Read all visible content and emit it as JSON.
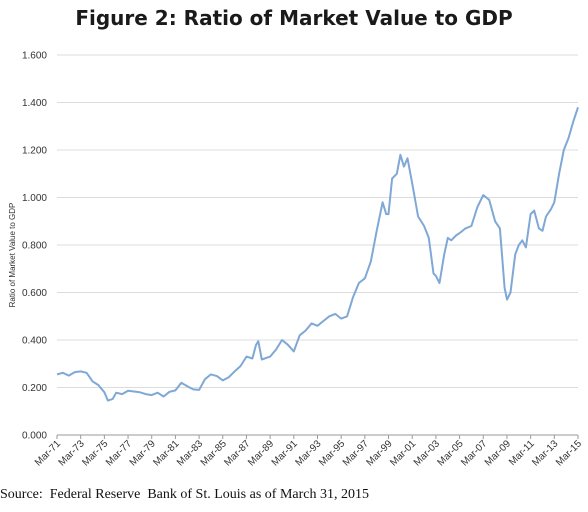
{
  "title": "Figure 2: Ratio of Market Value to GDP",
  "source": "Source:  Federal Reserve  Bank of St. Louis as of March 31, 2015",
  "chart_data": {
    "type": "line",
    "title": "Figure 2: Ratio of Market Value to GDP",
    "xlabel": "",
    "ylabel": "Ratio of Market Value to GDP",
    "ylim": [
      0,
      1.6
    ],
    "yticks": [
      "0.000",
      "0.200",
      "0.400",
      "0.600",
      "0.800",
      "1.000",
      "1.200",
      "1.400",
      "1.600"
    ],
    "xticks": [
      "Mar-71",
      "Mar-73",
      "Mar-75",
      "Mar-77",
      "Mar-79",
      "Mar-81",
      "Mar-83",
      "Mar-85",
      "Mar-87",
      "Mar-89",
      "Mar-91",
      "Mar-93",
      "Mar-95",
      "Mar-97",
      "Mar-99",
      "Mar-01",
      "Mar-03",
      "Mar-05",
      "Mar-07",
      "Mar-09",
      "Mar-11",
      "Mar-13",
      "Mar-15"
    ],
    "grid": true,
    "line_color": "#7fa8d6",
    "series": [
      {
        "points": [
          [
            1971.0,
            0.255
          ],
          [
            1971.5,
            0.262
          ],
          [
            1972.0,
            0.25
          ],
          [
            1972.5,
            0.265
          ],
          [
            1973.0,
            0.268
          ],
          [
            1973.5,
            0.262
          ],
          [
            1974.0,
            0.226
          ],
          [
            1974.5,
            0.21
          ],
          [
            1975.0,
            0.18
          ],
          [
            1975.3,
            0.145
          ],
          [
            1975.7,
            0.152
          ],
          [
            1976.0,
            0.178
          ],
          [
            1976.5,
            0.172
          ],
          [
            1977.0,
            0.186
          ],
          [
            1977.5,
            0.183
          ],
          [
            1978.0,
            0.18
          ],
          [
            1978.5,
            0.172
          ],
          [
            1979.0,
            0.168
          ],
          [
            1979.5,
            0.178
          ],
          [
            1980.0,
            0.162
          ],
          [
            1980.5,
            0.182
          ],
          [
            1981.0,
            0.188
          ],
          [
            1981.5,
            0.22
          ],
          [
            1982.0,
            0.205
          ],
          [
            1982.5,
            0.192
          ],
          [
            1983.0,
            0.19
          ],
          [
            1983.5,
            0.235
          ],
          [
            1984.0,
            0.255
          ],
          [
            1984.5,
            0.248
          ],
          [
            1985.0,
            0.23
          ],
          [
            1985.5,
            0.243
          ],
          [
            1986.0,
            0.268
          ],
          [
            1986.5,
            0.29
          ],
          [
            1987.0,
            0.33
          ],
          [
            1987.5,
            0.322
          ],
          [
            1987.8,
            0.378
          ],
          [
            1988.0,
            0.395
          ],
          [
            1988.3,
            0.318
          ],
          [
            1988.7,
            0.325
          ],
          [
            1989.0,
            0.33
          ],
          [
            1989.5,
            0.36
          ],
          [
            1990.0,
            0.4
          ],
          [
            1990.5,
            0.38
          ],
          [
            1991.0,
            0.352
          ],
          [
            1991.5,
            0.42
          ],
          [
            1992.0,
            0.44
          ],
          [
            1992.5,
            0.47
          ],
          [
            1993.0,
            0.46
          ],
          [
            1993.5,
            0.48
          ],
          [
            1994.0,
            0.5
          ],
          [
            1994.5,
            0.51
          ],
          [
            1995.0,
            0.49
          ],
          [
            1995.5,
            0.5
          ],
          [
            1996.0,
            0.58
          ],
          [
            1996.5,
            0.64
          ],
          [
            1997.0,
            0.66
          ],
          [
            1997.5,
            0.73
          ],
          [
            1998.0,
            0.86
          ],
          [
            1998.5,
            0.98
          ],
          [
            1998.8,
            0.93
          ],
          [
            1999.0,
            0.93
          ],
          [
            1999.3,
            1.08
          ],
          [
            1999.7,
            1.1
          ],
          [
            2000.0,
            1.18
          ],
          [
            2000.3,
            1.13
          ],
          [
            2000.6,
            1.165
          ],
          [
            2001.0,
            1.06
          ],
          [
            2001.5,
            0.92
          ],
          [
            2002.0,
            0.88
          ],
          [
            2002.4,
            0.83
          ],
          [
            2002.8,
            0.68
          ],
          [
            2003.0,
            0.67
          ],
          [
            2003.3,
            0.64
          ],
          [
            2003.7,
            0.76
          ],
          [
            2004.0,
            0.83
          ],
          [
            2004.3,
            0.82
          ],
          [
            2004.7,
            0.84
          ],
          [
            2005.0,
            0.85
          ],
          [
            2005.5,
            0.87
          ],
          [
            2006.0,
            0.88
          ],
          [
            2006.5,
            0.96
          ],
          [
            2007.0,
            1.01
          ],
          [
            2007.5,
            0.99
          ],
          [
            2008.0,
            0.9
          ],
          [
            2008.4,
            0.87
          ],
          [
            2008.8,
            0.62
          ],
          [
            2009.0,
            0.57
          ],
          [
            2009.3,
            0.6
          ],
          [
            2009.7,
            0.76
          ],
          [
            2010.0,
            0.8
          ],
          [
            2010.3,
            0.82
          ],
          [
            2010.6,
            0.79
          ],
          [
            2011.0,
            0.93
          ],
          [
            2011.3,
            0.945
          ],
          [
            2011.7,
            0.87
          ],
          [
            2012.0,
            0.86
          ],
          [
            2012.3,
            0.92
          ],
          [
            2012.7,
            0.95
          ],
          [
            2013.0,
            0.98
          ],
          [
            2013.4,
            1.1
          ],
          [
            2013.8,
            1.2
          ],
          [
            2014.2,
            1.25
          ],
          [
            2014.6,
            1.32
          ],
          [
            2015.0,
            1.38
          ]
        ]
      }
    ]
  }
}
